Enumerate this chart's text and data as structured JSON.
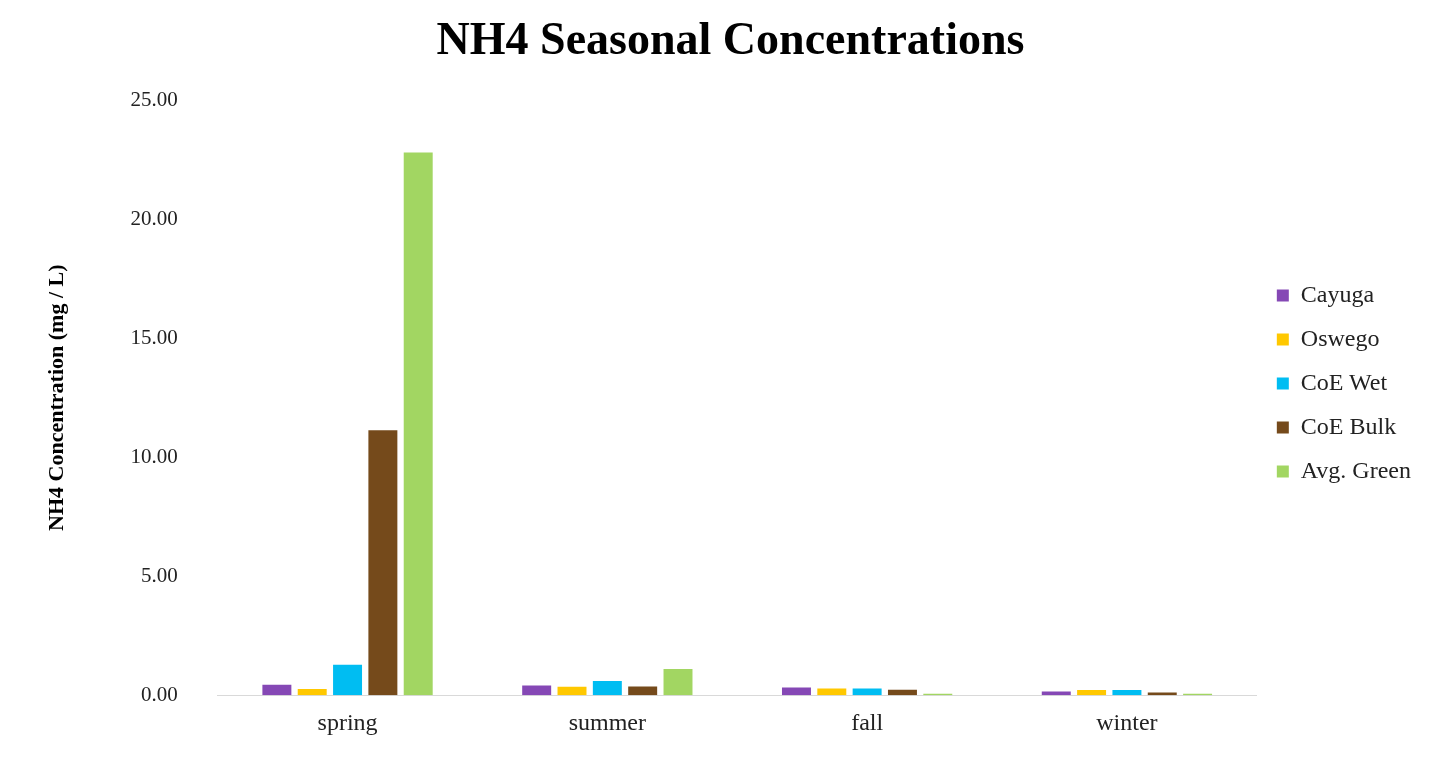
{
  "chart_data": {
    "type": "bar",
    "title": "NH4 Seasonal Concentrations",
    "ylabel": "NH4 Concentration (mg / L)",
    "categories": [
      "spring",
      "summer",
      "fall",
      "winter"
    ],
    "series": [
      {
        "name": "Cayuga",
        "color": "#8548b5",
        "values": [
          0.44,
          0.41,
          0.32,
          0.16
        ]
      },
      {
        "name": "Oswego",
        "color": "#ffc800",
        "values": [
          0.26,
          0.35,
          0.28,
          0.22
        ]
      },
      {
        "name": "CoE Wet",
        "color": "#00bdf2",
        "values": [
          1.28,
          0.6,
          0.28,
          0.22
        ]
      },
      {
        "name": "CoE Bulk",
        "color": "#754a1b",
        "values": [
          11.13,
          0.37,
          0.23,
          0.11
        ]
      },
      {
        "name": "Avg. Green",
        "color": "#a2d662",
        "values": [
          22.8,
          1.1,
          0.06,
          0.06
        ]
      }
    ],
    "ylim": [
      0,
      25
    ],
    "yticks": [
      {
        "value": 0,
        "label": "0.00"
      },
      {
        "value": 5,
        "label": "5.00"
      },
      {
        "value": 10,
        "label": "10.00"
      },
      {
        "value": 15,
        "label": "15.00"
      },
      {
        "value": 20,
        "label": "20.00"
      },
      {
        "value": 25,
        "label": "25.00"
      }
    ],
    "grid": false,
    "legend": "right"
  }
}
